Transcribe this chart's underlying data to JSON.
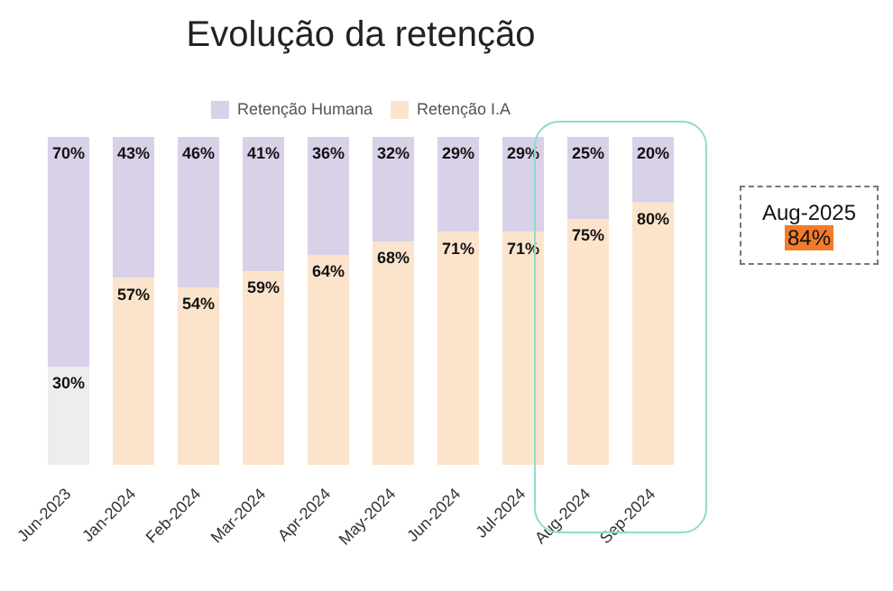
{
  "chart_data": {
    "type": "bar",
    "title": "Evolução da retenção",
    "stacked": true,
    "legend": "top",
    "tick_labels": "x",
    "ylim": [
      0,
      100
    ],
    "categories": [
      "Jun-2023",
      "Jan-2024",
      "Feb-2024",
      "Mar-2024",
      "Apr-2024",
      "May-2024",
      "Jun-2024",
      "Jul-2024",
      "Aug-2024",
      "Sep-2024"
    ],
    "series": [
      {
        "name": "Retenção I.A",
        "color": "#fce4cc",
        "colors": [
          "#ededed",
          "#fce4cc",
          "#fce4cc",
          "#fce4cc",
          "#fce4cc",
          "#fce4cc",
          "#fce4cc",
          "#fce4cc",
          "#fce4cc",
          "#fce4cc"
        ],
        "values": [
          30,
          57,
          54,
          59,
          64,
          68,
          71,
          71,
          75,
          80
        ],
        "value_labels": [
          "30%",
          "57%",
          "54%",
          "59%",
          "64%",
          "68%",
          "71%",
          "71%",
          "75%",
          "80%"
        ]
      },
      {
        "name": "Retenção Humana",
        "color": "#d9d1e8",
        "values": [
          70,
          43,
          46,
          41,
          36,
          32,
          29,
          29,
          25,
          20
        ],
        "value_labels": [
          "70%",
          "43%",
          "46%",
          "41%",
          "36%",
          "32%",
          "29%",
          "29%",
          "25%",
          "20%"
        ]
      }
    ],
    "annotations": [
      "Aug-2025",
      "84%"
    ]
  }
}
